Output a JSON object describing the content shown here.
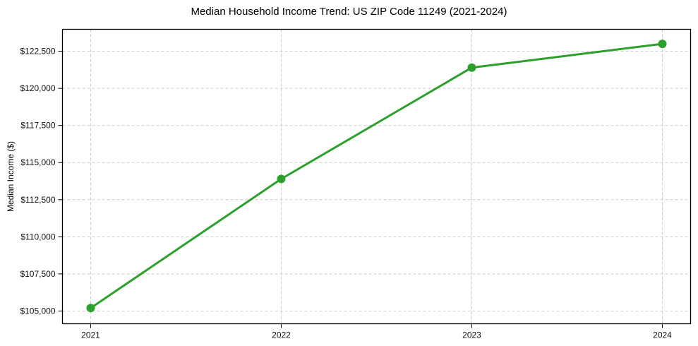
{
  "chart_data": {
    "type": "line",
    "title": "Median Household Income Trend: US ZIP Code 11249 (2021-2024)",
    "xlabel": "",
    "ylabel": "Median Income ($)",
    "categories": [
      "2021",
      "2022",
      "2023",
      "2024"
    ],
    "series": [
      {
        "name": "Median Household Income",
        "values": [
          105200,
          113900,
          121400,
          123000
        ],
        "color": "#2ca02c"
      }
    ],
    "yticks": [
      {
        "value": 105000,
        "label": "$105,000"
      },
      {
        "value": 107500,
        "label": "$107,500"
      },
      {
        "value": 110000,
        "label": "$110,000"
      },
      {
        "value": 112500,
        "label": "$112,500"
      },
      {
        "value": 115000,
        "label": "$115,000"
      },
      {
        "value": 117500,
        "label": "$117,500"
      },
      {
        "value": 120000,
        "label": "$120,000"
      },
      {
        "value": 122500,
        "label": "$122,500"
      }
    ],
    "ylim": [
      104140,
      123980
    ],
    "grid": {
      "visible": true,
      "style": "dashed",
      "color": "#cccccc"
    },
    "legend_position": "none",
    "plot_border_color": "#000000",
    "background_color": "#ffffff"
  }
}
